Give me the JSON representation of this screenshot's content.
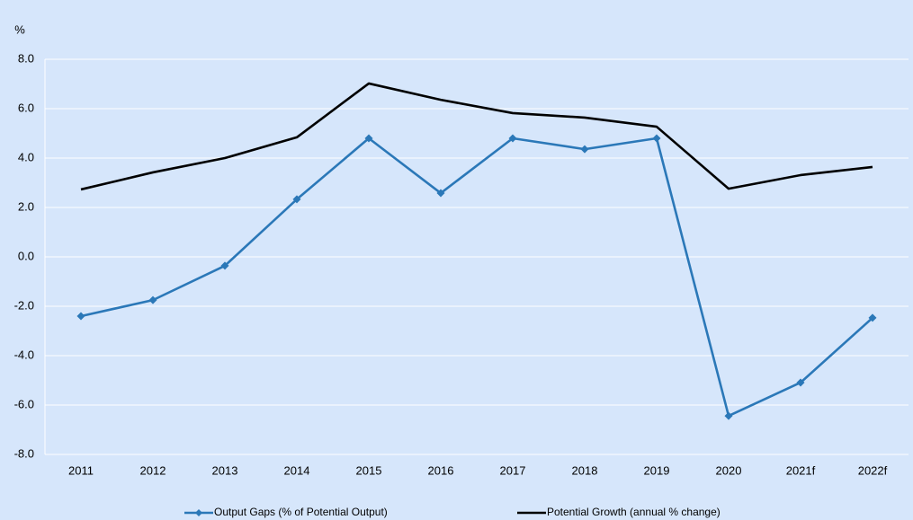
{
  "chart_data": {
    "type": "line",
    "y_label": "%",
    "categories": [
      "2011",
      "2012",
      "2013",
      "2014",
      "2015",
      "2016",
      "2017",
      "2018",
      "2019",
      "2020",
      "2021f",
      "2022f"
    ],
    "series": [
      {
        "name": "Output Gaps (% of Potential Output)",
        "color": "#2b78b8",
        "marker": "diamond",
        "values": [
          -2.4,
          -1.75,
          -0.36,
          2.33,
          4.8,
          2.58,
          4.8,
          4.36,
          4.8,
          -6.44,
          -5.09,
          -2.47
        ]
      },
      {
        "name": "Potential Growth (annual % change)",
        "color": "#000000",
        "values": [
          2.73,
          3.42,
          4.0,
          4.84,
          7.02,
          6.36,
          5.82,
          5.64,
          5.27,
          2.76,
          3.31,
          3.64
        ]
      }
    ],
    "ylim": [
      -8,
      8
    ],
    "yticks": [
      {
        "value": -8,
        "label": "-8.0"
      },
      {
        "value": -6,
        "label": "-6.0"
      },
      {
        "value": -4,
        "label": "-4.0"
      },
      {
        "value": -2,
        "label": "-2.0"
      },
      {
        "value": 0,
        "label": "0.0"
      },
      {
        "value": 2,
        "label": "2.0"
      },
      {
        "value": 4,
        "label": "4.0"
      },
      {
        "value": 6,
        "label": "6.0"
      },
      {
        "value": 8,
        "label": "8.0"
      }
    ],
    "grid": true,
    "legend": "bottom"
  }
}
